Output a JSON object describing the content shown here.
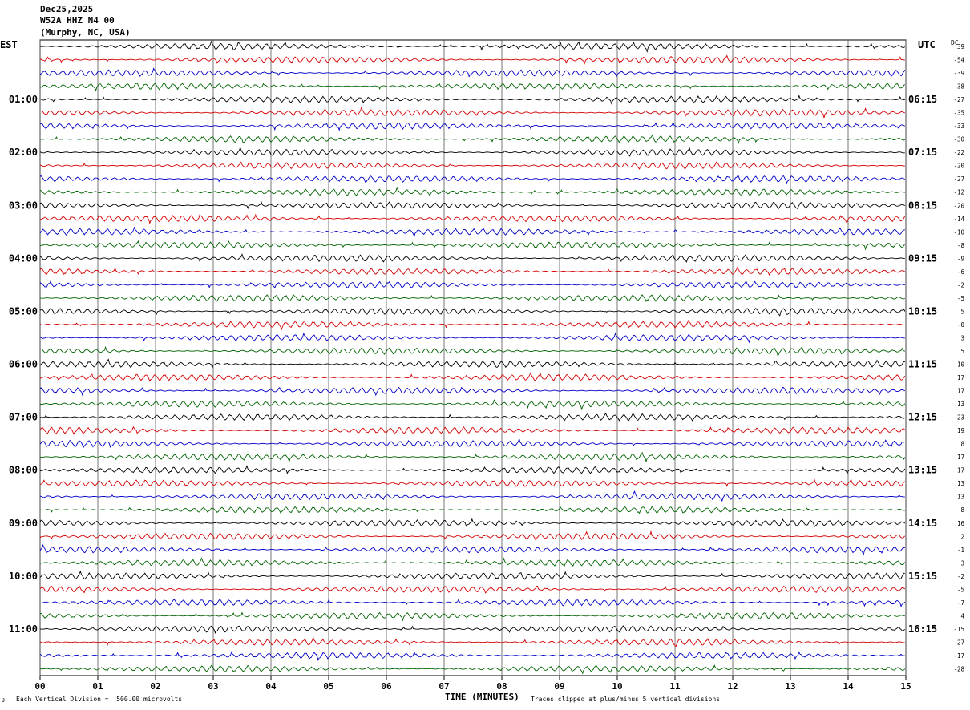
{
  "header": {
    "date": "Dec25,2025",
    "station": "W52A HHZ N4 00",
    "location": "(Murphy, NC, USA)"
  },
  "left_zone": "EST",
  "right_zone": "UTC",
  "dc_label": "DC",
  "footer": {
    "scale": "Each Vertical Division =  500.00 microvolts",
    "clip": "Traces clipped at plus/minus 5 vertical divisions",
    "mark": "ᴊ"
  },
  "colors": {
    "trace_cycle": [
      "#000000",
      "#d40000",
      "#0000c8",
      "#006400"
    ],
    "grid": "#555555"
  },
  "chart_data": {
    "type": "line",
    "title": "",
    "xlabel": "TIME (MINUTES)",
    "ylabel": "",
    "xlim": [
      0,
      15
    ],
    "x_ticks": [
      "00",
      "01",
      "02",
      "03",
      "04",
      "05",
      "06",
      "07",
      "08",
      "09",
      "10",
      "11",
      "12",
      "13",
      "14",
      "15"
    ],
    "grid": true,
    "row_count": 48,
    "row_labels_left": [
      {
        "row": 4,
        "label": "01:00"
      },
      {
        "row": 8,
        "label": "02:00"
      },
      {
        "row": 12,
        "label": "03:00"
      },
      {
        "row": 16,
        "label": "04:00"
      },
      {
        "row": 20,
        "label": "05:00"
      },
      {
        "row": 24,
        "label": "06:00"
      },
      {
        "row": 28,
        "label": "07:00"
      },
      {
        "row": 32,
        "label": "08:00"
      },
      {
        "row": 36,
        "label": "09:00"
      },
      {
        "row": 40,
        "label": "10:00"
      },
      {
        "row": 44,
        "label": "11:00"
      }
    ],
    "row_labels_right": [
      {
        "row": 4,
        "label": "06:15"
      },
      {
        "row": 8,
        "label": "07:15"
      },
      {
        "row": 12,
        "label": "08:15"
      },
      {
        "row": 16,
        "label": "09:15"
      },
      {
        "row": 20,
        "label": "10:15"
      },
      {
        "row": 24,
        "label": "11:15"
      },
      {
        "row": 28,
        "label": "12:15"
      },
      {
        "row": 32,
        "label": "13:15"
      },
      {
        "row": 36,
        "label": "14:15"
      },
      {
        "row": 40,
        "label": "15:15"
      },
      {
        "row": 44,
        "label": "16:15"
      }
    ],
    "dc_offsets": [
      "39",
      "-54",
      "-39",
      "-38",
      "-27",
      "-35",
      "-33",
      "-30",
      "-22",
      "-20",
      "-27",
      "-12",
      "-20",
      "-14",
      "-10",
      "-8",
      "-9",
      "-6",
      "-2",
      "-5",
      "5",
      "-0",
      "3",
      "5",
      "10",
      "17",
      "17",
      "13",
      "23",
      "19",
      "8",
      "17",
      "17",
      "13",
      "13",
      "8",
      "16",
      "2",
      "-1",
      "3",
      "-2",
      "-5",
      "-7",
      "4",
      "-15",
      "-27",
      "-17",
      "-28"
    ],
    "series": [
      {
        "color_cycle": [
          "black",
          "red",
          "blue",
          "green"
        ],
        "amplitude_divisions": 1
      }
    ]
  }
}
